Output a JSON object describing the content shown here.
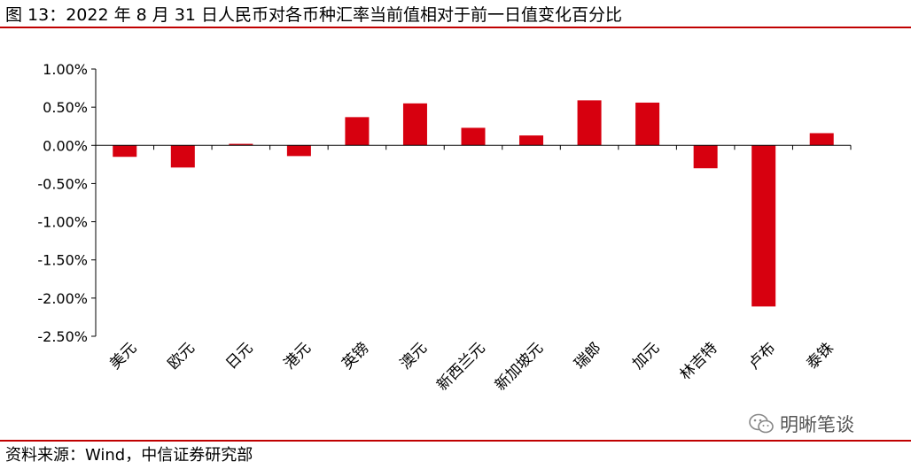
{
  "figure": {
    "title": "图 13：2022 年 8 月 31 日人民币对各币种汇率当前值相对于前一日值变化百分比",
    "source": "资料来源：Wind，中信证券研究部",
    "watermark": "明晰笔谈",
    "rule_color": "#c00000"
  },
  "chart_data": {
    "type": "bar",
    "categories": [
      "美元",
      "欧元",
      "日元",
      "港元",
      "英镑",
      "澳元",
      "新西兰元",
      "新加坡元",
      "瑞郎",
      "加元",
      "林吉特",
      "卢布",
      "泰铢"
    ],
    "values": [
      -0.15,
      -0.29,
      0.02,
      -0.14,
      0.37,
      0.55,
      0.23,
      0.13,
      0.59,
      0.56,
      -0.3,
      -2.11,
      0.16
    ],
    "ylim": [
      -2.5,
      1.0
    ],
    "yticks": [
      1.0,
      0.5,
      0.0,
      -0.5,
      -1.0,
      -1.5,
      -2.0,
      -2.5
    ],
    "ytick_labels": [
      "1.00%",
      "0.50%",
      "0.00%",
      "-0.50%",
      "-1.00%",
      "-1.50%",
      "-2.00%",
      "-2.50%"
    ],
    "bar_color": "#d7000f",
    "grid": false,
    "legend": "none"
  }
}
